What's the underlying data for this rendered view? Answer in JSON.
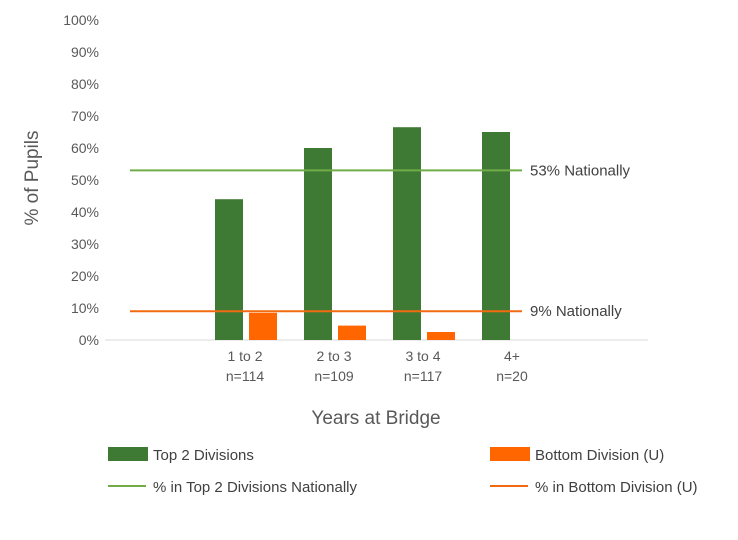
{
  "chart_data": {
    "type": "bar",
    "categories": [
      "1 to 2",
      "2 to 3",
      "3 to 4",
      "4+"
    ],
    "category_counts": [
      "n=114",
      "n=109",
      "n=117",
      "n=20"
    ],
    "series": [
      {
        "name": "Top 2 Divisions",
        "values": [
          44,
          60,
          66.5,
          65
        ],
        "color": "#3f7a35"
      },
      {
        "name": "Bottom Division (U)",
        "values": [
          8.5,
          4.5,
          2.5,
          null
        ],
        "color": "#ff6600"
      }
    ],
    "reference_lines": [
      {
        "name": "% in Top 2 Divisions Nationally",
        "value": 53,
        "label": "53% Nationally",
        "color": "#70ad47"
      },
      {
        "name": "% in Bottom Division (U)",
        "value": 9,
        "label": "9% Nationally",
        "color": "#f26a10"
      }
    ],
    "xlabel": "Years at Bridge",
    "ylabel": "% of Pupils",
    "ylim": [
      0,
      100
    ],
    "yticks": [
      "0%",
      "10%",
      "20%",
      "30%",
      "40%",
      "50%",
      "60%",
      "70%",
      "80%",
      "90%",
      "100%"
    ],
    "legend_position": "bottom",
    "grid": false
  }
}
